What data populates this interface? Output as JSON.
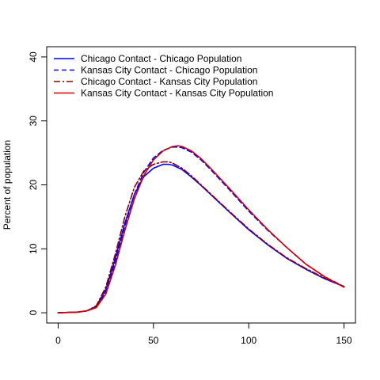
{
  "chart_data": {
    "type": "line",
    "title": "",
    "xlabel": "",
    "ylabel": "Percent of population",
    "xlim": [
      -6,
      156
    ],
    "ylim": [
      -1.6,
      41.6
    ],
    "xticks": [
      0,
      50,
      100,
      150
    ],
    "yticks": [
      0,
      10,
      20,
      30,
      40
    ],
    "grid": false,
    "legend_position": "top-left",
    "series": [
      {
        "name": "Chicago Contact - Chicago Population",
        "color": "#0000ff",
        "dash": "solid",
        "x": [
          0,
          10,
          15,
          20,
          25,
          30,
          35,
          40,
          45,
          50,
          55,
          58,
          60,
          65,
          70,
          75,
          80,
          90,
          100,
          110,
          120,
          130,
          140,
          150
        ],
        "y": [
          0,
          0.1,
          0.3,
          1.0,
          3.6,
          8.5,
          14.0,
          18.5,
          21.3,
          22.6,
          23.2,
          23.2,
          23.1,
          22.4,
          21.2,
          19.9,
          18.5,
          15.7,
          13.0,
          10.6,
          8.5,
          6.8,
          5.3,
          4.1
        ]
      },
      {
        "name": "Kansas City Contact - Chicago Population",
        "color": "#0000ff",
        "dash": "dashed",
        "x": [
          0,
          10,
          15,
          20,
          25,
          30,
          35,
          40,
          45,
          50,
          55,
          60,
          63,
          65,
          70,
          75,
          80,
          90,
          100,
          110,
          120,
          130,
          140,
          150
        ],
        "y": [
          0,
          0.1,
          0.3,
          0.9,
          3.2,
          8.0,
          13.6,
          18.5,
          22.0,
          24.2,
          25.4,
          25.9,
          25.9,
          25.8,
          25.1,
          23.9,
          22.4,
          19.2,
          15.9,
          12.9,
          10.2,
          7.6,
          5.6,
          4.1
        ]
      },
      {
        "name": "Chicago Contact - Kansas City Population",
        "color": "#8b0000",
        "dash": "dashdot",
        "x": [
          0,
          10,
          15,
          20,
          25,
          30,
          35,
          40,
          45,
          50,
          55,
          58,
          60,
          65,
          70,
          75,
          80,
          90,
          100,
          110,
          120,
          130,
          140,
          150
        ],
        "y": [
          0,
          0.1,
          0.3,
          1.1,
          4.0,
          9.2,
          15.0,
          19.6,
          22.2,
          23.2,
          23.6,
          23.6,
          23.4,
          22.6,
          21.4,
          20.0,
          18.6,
          15.8,
          13.1,
          10.7,
          8.6,
          6.9,
          5.4,
          4.1
        ]
      },
      {
        "name": "Kansas City Contact - Kansas City Population",
        "color": "#cc0000",
        "dash": "solid",
        "x": [
          0,
          10,
          15,
          20,
          25,
          30,
          35,
          40,
          45,
          50,
          55,
          60,
          63,
          65,
          70,
          75,
          80,
          90,
          100,
          110,
          120,
          130,
          140,
          150
        ],
        "y": [
          0,
          0.1,
          0.3,
          0.8,
          2.9,
          7.4,
          12.9,
          17.8,
          21.5,
          23.9,
          25.3,
          26.0,
          26.1,
          26.0,
          25.3,
          24.1,
          22.6,
          19.4,
          16.1,
          13.0,
          10.2,
          7.6,
          5.6,
          4.0
        ]
      }
    ]
  }
}
